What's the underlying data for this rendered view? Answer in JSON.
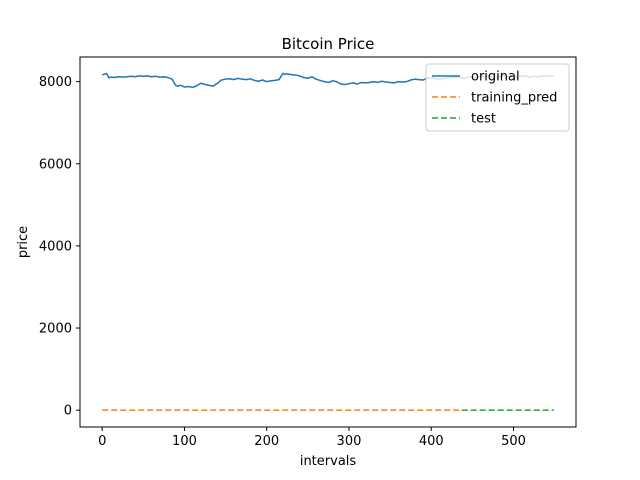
{
  "chart_data": {
    "type": "line",
    "title": "Bitcoin Price",
    "xlabel": "intervals",
    "ylabel": "price",
    "xlim": [
      -27,
      576
    ],
    "ylim": [
      -410,
      8600
    ],
    "xticks": [
      0,
      100,
      200,
      300,
      400,
      500
    ],
    "yticks": [
      0,
      2000,
      4000,
      6000,
      8000
    ],
    "grid": false,
    "legend_position": "top-right",
    "series": [
      {
        "name": "original",
        "color": "#1f77b4",
        "style": "solid",
        "x": [
          0,
          2,
          4,
          5,
          7,
          8,
          10,
          15,
          20,
          25,
          30,
          35,
          40,
          45,
          50,
          55,
          60,
          65,
          70,
          75,
          80,
          85,
          88,
          90,
          92,
          95,
          100,
          105,
          110,
          115,
          120,
          125,
          130,
          135,
          140,
          145,
          150,
          155,
          160,
          165,
          170,
          175,
          180,
          185,
          190,
          195,
          200,
          205,
          210,
          215,
          218,
          220,
          222,
          225,
          230,
          235,
          240,
          245,
          250,
          255,
          260,
          265,
          270,
          275,
          280,
          285,
          290,
          295,
          300,
          305,
          310,
          315,
          320,
          325,
          330,
          335,
          340,
          345,
          350,
          355,
          360,
          365,
          370,
          375,
          380,
          385,
          390,
          395,
          400,
          405,
          410,
          415,
          420,
          425,
          430,
          435,
          440,
          445,
          450,
          455,
          460,
          465,
          470,
          475,
          480,
          485,
          490,
          495,
          500,
          505,
          510,
          515,
          520,
          525,
          530,
          535,
          540,
          545,
          549
        ],
        "y": [
          8160,
          8180,
          8190,
          8200,
          8140,
          8090,
          8110,
          8100,
          8120,
          8110,
          8120,
          8130,
          8120,
          8140,
          8130,
          8140,
          8120,
          8130,
          8110,
          8120,
          8100,
          8060,
          7950,
          7900,
          7890,
          7910,
          7870,
          7880,
          7860,
          7900,
          7960,
          7930,
          7910,
          7890,
          7960,
          8040,
          8060,
          8070,
          8050,
          8080,
          8060,
          8050,
          8070,
          8030,
          8010,
          8040,
          8000,
          8020,
          8030,
          8050,
          8150,
          8200,
          8180,
          8190,
          8170,
          8160,
          8140,
          8100,
          8080,
          8120,
          8060,
          8030,
          8000,
          7980,
          8020,
          8000,
          7940,
          7930,
          7950,
          7970,
          7940,
          7980,
          7970,
          7980,
          8000,
          7980,
          8010,
          7990,
          7980,
          7970,
          8000,
          7990,
          8000,
          8040,
          8060,
          8050,
          8040,
          8080,
          8100,
          8070,
          8050,
          8080,
          8090,
          8100,
          8110,
          8100,
          8080,
          8120,
          8110,
          8100,
          8120,
          8140,
          8130,
          8120,
          8110,
          8130,
          8150,
          8130,
          8140,
          8120,
          8130,
          8140,
          8110,
          8130,
          8120,
          8140,
          8130,
          8140,
          8130
        ]
      },
      {
        "name": "training_pred",
        "color": "#ff7f0e",
        "style": "dashed",
        "x": [
          0,
          437
        ],
        "y": [
          0,
          0
        ]
      },
      {
        "name": "test",
        "color": "#2ca02c",
        "style": "dashed",
        "x": [
          437,
          549
        ],
        "y": [
          0,
          0
        ]
      }
    ]
  }
}
